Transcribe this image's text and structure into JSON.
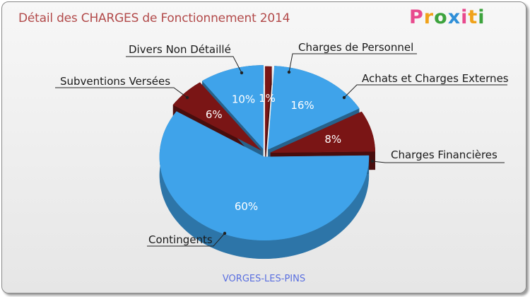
{
  "header": {
    "title": "Détail des CHARGES de Fonctionnement 2014",
    "logo": [
      "P",
      "r",
      "o",
      "x",
      "i",
      "t",
      "i"
    ],
    "logo_colors": [
      "#e84a8e",
      "#f0a21a",
      "#3da33d",
      "#2f8fd8",
      "#e84a8e",
      "#f0a21a",
      "#3da33d"
    ]
  },
  "footer": {
    "location": "VORGES-LES-PINS"
  },
  "chart_data": {
    "type": "pie",
    "title": "Détail des CHARGES de Fonctionnement 2014",
    "slices": [
      {
        "label": "Charges de Personnel",
        "value": 1,
        "pct_label": "1%",
        "color": "#7a1515"
      },
      {
        "label": "Achats et Charges Externes",
        "value": 16,
        "pct_label": "16%",
        "color": "#3fa3ea"
      },
      {
        "label": "Charges Financières",
        "value": 8,
        "pct_label": "8%",
        "color": "#7a1515"
      },
      {
        "label": "Contingents",
        "value": 60,
        "pct_label": "60%",
        "color": "#3fa3ea"
      },
      {
        "label": "Subventions Versées",
        "value": 6,
        "pct_label": "6%",
        "color": "#7a1515"
      },
      {
        "label": "Divers Non Détaillé",
        "value": 10,
        "pct_label": "10%",
        "color": "#3fa3ea"
      }
    ]
  }
}
